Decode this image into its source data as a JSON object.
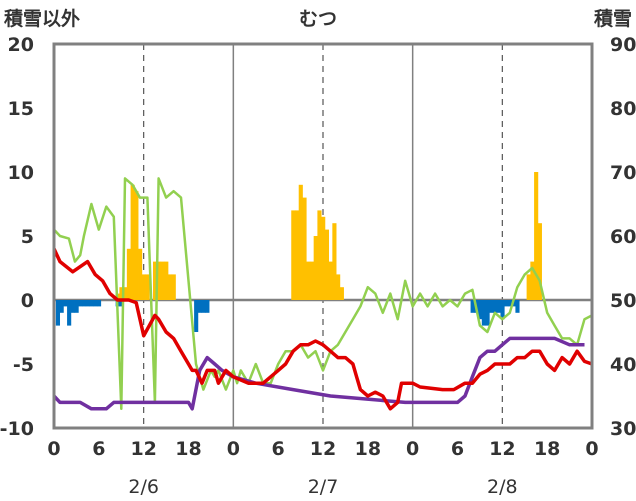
{
  "chart_data": {
    "type": "bar+line",
    "title": "むつ",
    "y_left_label": "積雪以外",
    "y_right_label": "積雪",
    "y_left_range": [
      -10,
      20
    ],
    "y_left_ticks": [
      -10,
      -5,
      0,
      5,
      10,
      15,
      20
    ],
    "y_right_range": [
      30,
      90
    ],
    "y_right_ticks": [
      30,
      40,
      50,
      60,
      70,
      80,
      90
    ],
    "x_range_hours": [
      0,
      72
    ],
    "x_tick_labels": [
      "0",
      "6",
      "12",
      "18",
      "0",
      "6",
      "12",
      "18",
      "0",
      "6",
      "12",
      "18",
      "0"
    ],
    "day_labels": [
      "2/6",
      "2/7",
      "2/8"
    ],
    "colors": {
      "temperature": "#e00000",
      "green_line": "#92d050",
      "snow_depth": "#7030a0",
      "precipitation": "#ffc000",
      "negative_bars": "#0070c0",
      "frame": "#808080"
    },
    "series": [
      {
        "key": "precip_bars",
        "axis": "left",
        "color": "#ffc000",
        "points": [
          [
            8.5,
            0.5
          ],
          [
            9.0,
            1.0
          ],
          [
            9.5,
            1.0
          ],
          [
            10.0,
            4.0
          ],
          [
            10.5,
            9.0
          ],
          [
            11.0,
            8.5
          ],
          [
            11.5,
            4.0
          ],
          [
            12.0,
            2.0
          ],
          [
            12.5,
            2.0
          ],
          [
            13.5,
            3.0
          ],
          [
            14.0,
            3.0
          ],
          [
            14.5,
            3.0
          ],
          [
            15.0,
            3.0
          ],
          [
            15.5,
            2.0
          ],
          [
            16.0,
            2.0
          ],
          [
            32.0,
            7.0
          ],
          [
            32.5,
            7.0
          ],
          [
            33.0,
            9.0
          ],
          [
            33.5,
            8.0
          ],
          [
            34.0,
            3.0
          ],
          [
            34.5,
            3.0
          ],
          [
            35.0,
            5.0
          ],
          [
            35.5,
            7.0
          ],
          [
            36.0,
            6.5
          ],
          [
            36.5,
            5.5
          ],
          [
            37.0,
            3.0
          ],
          [
            37.5,
            6.0
          ],
          [
            38.0,
            2.0
          ],
          [
            38.5,
            1.0
          ],
          [
            63.5,
            2.0
          ],
          [
            64.0,
            3.0
          ],
          [
            64.5,
            10.0
          ],
          [
            65.0,
            6.0
          ]
        ]
      },
      {
        "key": "negative_bars",
        "axis": "left",
        "color": "#0070c0",
        "points": [
          [
            0.5,
            -2.0
          ],
          [
            1.0,
            -1.0
          ],
          [
            1.5,
            -0.5
          ],
          [
            2.0,
            -2.0
          ],
          [
            2.5,
            -1.0
          ],
          [
            3.0,
            -1.0
          ],
          [
            3.5,
            -0.5
          ],
          [
            4.0,
            -0.5
          ],
          [
            4.5,
            -0.5
          ],
          [
            5.0,
            -0.5
          ],
          [
            5.5,
            -0.5
          ],
          [
            6.0,
            -0.5
          ],
          [
            8.5,
            -0.5
          ],
          [
            9.0,
            -0.5
          ],
          [
            19.0,
            -2.5
          ],
          [
            19.5,
            -1.0
          ],
          [
            20.0,
            -1.0
          ],
          [
            20.5,
            -1.0
          ],
          [
            56.0,
            -1.0
          ],
          [
            56.5,
            -1.0
          ],
          [
            57.0,
            -1.5
          ],
          [
            57.5,
            -2.0
          ],
          [
            58.0,
            -2.0
          ],
          [
            58.5,
            -1.0
          ],
          [
            59.0,
            -1.0
          ],
          [
            59.5,
            -1.0
          ],
          [
            60.0,
            -1.5
          ],
          [
            60.5,
            -0.5
          ],
          [
            61.0,
            -0.5
          ],
          [
            61.5,
            -0.5
          ],
          [
            62.0,
            -1.0
          ]
        ]
      },
      {
        "key": "snow_depth",
        "axis": "right",
        "color": "#7030a0",
        "points": [
          [
            0,
            35
          ],
          [
            0.8,
            34
          ],
          [
            3.5,
            34
          ],
          [
            5,
            33
          ],
          [
            7,
            33
          ],
          [
            8,
            34
          ],
          [
            13,
            34
          ],
          [
            18,
            34
          ],
          [
            18.5,
            33
          ],
          [
            19.5,
            39
          ],
          [
            20.5,
            41
          ],
          [
            21.5,
            40
          ],
          [
            22.5,
            39
          ],
          [
            24,
            38
          ],
          [
            27,
            37
          ],
          [
            32,
            36
          ],
          [
            37,
            35
          ],
          [
            47,
            34
          ],
          [
            54,
            34
          ],
          [
            55,
            35
          ],
          [
            56,
            38
          ],
          [
            57,
            41
          ],
          [
            58,
            42
          ],
          [
            59,
            42
          ],
          [
            60,
            43
          ],
          [
            61,
            44
          ],
          [
            62,
            44
          ],
          [
            63,
            44
          ],
          [
            64,
            44
          ],
          [
            66,
            44
          ],
          [
            67,
            44
          ],
          [
            69,
            43
          ],
          [
            71,
            43
          ]
        ]
      },
      {
        "key": "temperature",
        "axis": "left",
        "color": "#e00000",
        "points": [
          [
            0,
            4
          ],
          [
            0.8,
            3
          ],
          [
            2.5,
            2.2
          ],
          [
            4.5,
            3
          ],
          [
            5.5,
            2
          ],
          [
            6.5,
            1.5
          ],
          [
            7.5,
            0.5
          ],
          [
            8.5,
            0
          ],
          [
            10,
            0
          ],
          [
            11,
            -0.2
          ],
          [
            12,
            -2.8
          ],
          [
            13.5,
            -1.2
          ],
          [
            14,
            -1.5
          ],
          [
            15,
            -2.5
          ],
          [
            16,
            -3
          ],
          [
            17,
            -4
          ],
          [
            18,
            -5
          ],
          [
            18.5,
            -5.5
          ],
          [
            19,
            -5.5
          ],
          [
            19.8,
            -6.5
          ],
          [
            20.5,
            -5.5
          ],
          [
            21.5,
            -5.5
          ],
          [
            22,
            -6.5
          ],
          [
            23,
            -5.5
          ],
          [
            24,
            -6
          ],
          [
            26,
            -6.5
          ],
          [
            28,
            -6.5
          ],
          [
            29,
            -6
          ],
          [
            30,
            -5.5
          ],
          [
            31,
            -5
          ],
          [
            32,
            -4
          ],
          [
            33,
            -3.5
          ],
          [
            34,
            -3.5
          ],
          [
            35,
            -3.2
          ],
          [
            36,
            -3.5
          ],
          [
            37,
            -4
          ],
          [
            38,
            -4.5
          ],
          [
            39,
            -4.5
          ],
          [
            40,
            -5
          ],
          [
            40.5,
            -6
          ],
          [
            41,
            -7
          ],
          [
            42,
            -7.5
          ],
          [
            43,
            -7.2
          ],
          [
            44,
            -7.5
          ],
          [
            45,
            -8.5
          ],
          [
            46,
            -8
          ],
          [
            46.5,
            -6.5
          ],
          [
            47,
            -6.5
          ],
          [
            48,
            -6.5
          ],
          [
            49,
            -6.8
          ],
          [
            52,
            -7
          ],
          [
            53.5,
            -7
          ],
          [
            55,
            -6.5
          ],
          [
            56,
            -6.5
          ],
          [
            57,
            -5.8
          ],
          [
            58,
            -5.5
          ],
          [
            59,
            -5
          ],
          [
            60,
            -5
          ],
          [
            61,
            -5
          ],
          [
            62,
            -4.5
          ],
          [
            63,
            -4.5
          ],
          [
            64,
            -4
          ],
          [
            65,
            -4
          ],
          [
            66,
            -5
          ],
          [
            67,
            -5.5
          ],
          [
            68,
            -4.5
          ],
          [
            69,
            -5
          ],
          [
            70,
            -4
          ],
          [
            71,
            -4.8
          ],
          [
            72,
            -5
          ]
        ]
      },
      {
        "key": "green_line",
        "axis": "left",
        "color": "#92d050",
        "points": [
          [
            0,
            5.5
          ],
          [
            0.8,
            5
          ],
          [
            2,
            4.8
          ],
          [
            2.8,
            3
          ],
          [
            3.5,
            3.5
          ],
          [
            4,
            5
          ],
          [
            5,
            7.5
          ],
          [
            6,
            5.5
          ],
          [
            7,
            7.3
          ],
          [
            8,
            6.5
          ],
          [
            9,
            -8.5
          ],
          [
            9.5,
            9.5
          ],
          [
            10.5,
            9
          ],
          [
            11.5,
            8
          ],
          [
            12.5,
            8
          ],
          [
            13.5,
            -8
          ],
          [
            14,
            9.5
          ],
          [
            15,
            8
          ],
          [
            16,
            8.5
          ],
          [
            17,
            8
          ],
          [
            19,
            -5
          ],
          [
            20,
            -7
          ],
          [
            21,
            -5.5
          ],
          [
            21.5,
            -6
          ],
          [
            22,
            -5.5
          ],
          [
            23,
            -7
          ],
          [
            24,
            -5.5
          ],
          [
            24.5,
            -6.5
          ],
          [
            25,
            -5.5
          ],
          [
            26,
            -6.5
          ],
          [
            27,
            -5
          ],
          [
            28,
            -6.5
          ],
          [
            29,
            -6.5
          ],
          [
            30,
            -5
          ],
          [
            31,
            -4
          ],
          [
            32,
            -4
          ],
          [
            33,
            -3.5
          ],
          [
            34,
            -4.5
          ],
          [
            35,
            -4
          ],
          [
            36,
            -5.5
          ],
          [
            37,
            -4
          ],
          [
            38,
            -3.5
          ],
          [
            39,
            -2.5
          ],
          [
            40,
            -1.5
          ],
          [
            41,
            -0.5
          ],
          [
            42,
            1
          ],
          [
            43,
            0.5
          ],
          [
            44,
            -1
          ],
          [
            45,
            0.5
          ],
          [
            46,
            -1.5
          ],
          [
            47,
            1.5
          ],
          [
            48,
            -0.5
          ],
          [
            49,
            0.5
          ],
          [
            50,
            -0.5
          ],
          [
            51,
            0.5
          ],
          [
            52,
            -0.5
          ],
          [
            53,
            0
          ],
          [
            54,
            -0.5
          ],
          [
            55,
            0.5
          ],
          [
            56,
            0.8
          ],
          [
            57,
            -2
          ],
          [
            58,
            -2.5
          ],
          [
            59,
            -1
          ],
          [
            60,
            -1.5
          ],
          [
            61,
            -1
          ],
          [
            62,
            1
          ],
          [
            63,
            2
          ],
          [
            64,
            2.5
          ],
          [
            65,
            1.5
          ],
          [
            66,
            -1
          ],
          [
            67,
            -2
          ],
          [
            68,
            -3
          ],
          [
            69,
            -3
          ],
          [
            70,
            -3.5
          ],
          [
            71,
            -1.5
          ],
          [
            72,
            -1.2
          ]
        ]
      }
    ]
  }
}
